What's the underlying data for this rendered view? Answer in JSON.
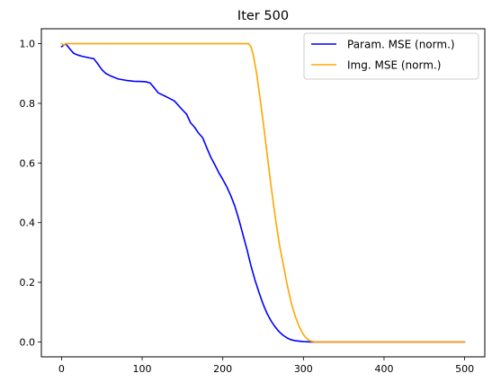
{
  "chart_data": {
    "type": "line",
    "title": "Iter 500",
    "xlabel": "",
    "ylabel": "",
    "xlim": [
      -25,
      525
    ],
    "ylim": [
      -0.05,
      1.05
    ],
    "xticks": [
      0,
      100,
      200,
      300,
      400,
      500
    ],
    "xtick_labels": [
      "0",
      "100",
      "200",
      "300",
      "400",
      "500"
    ],
    "yticks": [
      0.0,
      0.2,
      0.4,
      0.6,
      0.8,
      1.0
    ],
    "ytick_labels": [
      "0.0",
      "0.2",
      "0.4",
      "0.6",
      "0.8",
      "1.0"
    ],
    "grid": false,
    "legend": "top-right",
    "series": [
      {
        "name": "Param. MSE (norm.)",
        "color": "#0000ff",
        "x": [
          0,
          3,
          5,
          8,
          12,
          15,
          20,
          25,
          30,
          35,
          40,
          45,
          50,
          55,
          60,
          70,
          80,
          90,
          100,
          105,
          110,
          115,
          120,
          130,
          140,
          150,
          155,
          160,
          165,
          170,
          175,
          180,
          185,
          190,
          195,
          200,
          205,
          210,
          215,
          220,
          225,
          230,
          235,
          240,
          245,
          250,
          255,
          260,
          265,
          270,
          275,
          280,
          285,
          290,
          300,
          310,
          320,
          350,
          400,
          450,
          500
        ],
        "y": [
          0.99,
          0.995,
          1.0,
          0.99,
          0.977,
          0.968,
          0.962,
          0.958,
          0.955,
          0.952,
          0.95,
          0.932,
          0.913,
          0.9,
          0.893,
          0.882,
          0.877,
          0.874,
          0.873,
          0.872,
          0.868,
          0.852,
          0.835,
          0.822,
          0.808,
          0.778,
          0.764,
          0.735,
          0.72,
          0.7,
          0.685,
          0.652,
          0.62,
          0.595,
          0.568,
          0.545,
          0.52,
          0.49,
          0.455,
          0.41,
          0.36,
          0.31,
          0.255,
          0.207,
          0.165,
          0.127,
          0.095,
          0.07,
          0.05,
          0.034,
          0.022,
          0.013,
          0.007,
          0.004,
          0.001,
          0.0,
          0.0,
          0.0,
          0.0,
          0.0,
          0.0
        ]
      },
      {
        "name": "Img. MSE (norm.)",
        "color": "#ffa500",
        "x": [
          0,
          3,
          5,
          10,
          50,
          100,
          150,
          200,
          225,
          232,
          235,
          238,
          242,
          246,
          250,
          255,
          260,
          265,
          270,
          275,
          280,
          285,
          290,
          295,
          300,
          303,
          306,
          310,
          315,
          320,
          350,
          400,
          450,
          500
        ],
        "y": [
          1.0,
          0.995,
          1.0,
          1.0,
          1.0,
          1.0,
          1.0,
          1.0,
          1.0,
          1.0,
          0.99,
          0.96,
          0.9,
          0.82,
          0.74,
          0.63,
          0.52,
          0.42,
          0.33,
          0.26,
          0.19,
          0.13,
          0.085,
          0.05,
          0.025,
          0.015,
          0.007,
          0.002,
          0.0,
          0.0,
          0.0,
          0.0,
          0.0,
          0.0
        ]
      }
    ]
  }
}
